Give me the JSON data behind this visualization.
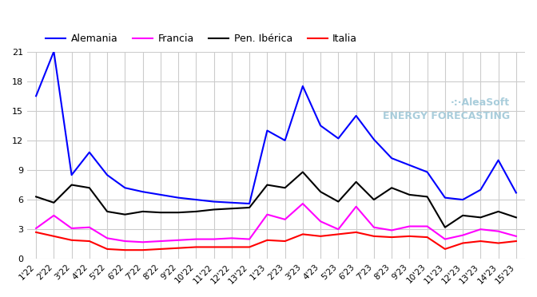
{
  "title": "",
  "series": {
    "Alemania": {
      "color": "#0000ff",
      "values": [
        16.5,
        21.0,
        8.5,
        10.8,
        8.5,
        7.2,
        6.8,
        6.5,
        6.2,
        6.0,
        5.8,
        5.7,
        5.6,
        13.0,
        12.0,
        17.5,
        13.5,
        12.2,
        14.5,
        12.1,
        10.2,
        9.5,
        8.8,
        6.2,
        6.0,
        7.0,
        10.0,
        6.7
      ]
    },
    "Francia": {
      "color": "#ff00ff",
      "values": [
        3.1,
        4.4,
        3.1,
        3.2,
        2.1,
        1.8,
        1.7,
        1.8,
        1.9,
        2.0,
        2.0,
        2.1,
        2.0,
        4.5,
        4.0,
        5.6,
        3.8,
        3.0,
        5.3,
        3.2,
        2.9,
        3.3,
        3.3,
        2.0,
        2.4,
        3.0,
        2.8,
        2.3
      ]
    },
    "Pen. Ibérica": {
      "color": "#000000",
      "values": [
        6.3,
        5.7,
        7.5,
        7.2,
        4.8,
        4.5,
        4.8,
        4.7,
        4.7,
        4.8,
        5.0,
        5.1,
        5.2,
        7.5,
        7.2,
        8.8,
        6.8,
        5.8,
        7.8,
        6.0,
        7.2,
        6.5,
        6.3,
        3.2,
        4.4,
        4.2,
        4.8,
        4.2
      ]
    },
    "Italia": {
      "color": "#ff0000",
      "values": [
        2.7,
        2.3,
        1.9,
        1.8,
        1.0,
        0.9,
        0.9,
        1.0,
        1.1,
        1.2,
        1.2,
        1.2,
        1.2,
        1.9,
        1.8,
        2.5,
        2.3,
        2.5,
        2.7,
        2.3,
        2.2,
        2.3,
        2.2,
        1.0,
        1.6,
        1.8,
        1.6,
        1.8
      ]
    }
  },
  "x_labels": [
    "1'22",
    "2'22",
    "3'22",
    "4'22",
    "5'22",
    "6'22",
    "7'22",
    "8'22",
    "9'22",
    "10'22",
    "11'22",
    "12'22",
    "13'22",
    "1'23",
    "2'23",
    "3'23",
    "4'23",
    "5'23",
    "6'23",
    "7'23",
    "8'23",
    "9'23",
    "10'23",
    "11'23",
    "12'23",
    "13'23",
    "14'23",
    "15'23"
  ],
  "ylim": [
    0,
    21
  ],
  "yticks": [
    0,
    3,
    6,
    9,
    12,
    15,
    18,
    21
  ],
  "grid_color": "#cccccc",
  "bg_color": "#ffffff",
  "watermark_text": "·:·AleaSoft\nENERGY FORECASTING",
  "watermark_color": "#a0c8d8",
  "legend_order": [
    "Alemania",
    "Francia",
    "Pen. Ibérica",
    "Italia"
  ]
}
